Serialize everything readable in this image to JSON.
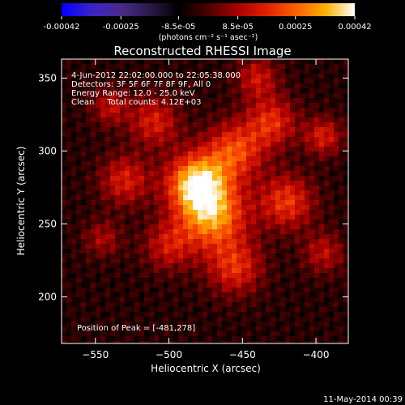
{
  "chart_data": {
    "type": "heatmap",
    "title": "Reconstructed RHESSI Image",
    "xlabel": "Heliocentric X (arcsec)",
    "ylabel": "Heliocentric Y (arcsec)",
    "xlim": [
      -573,
      -378
    ],
    "ylim": [
      168,
      363
    ],
    "x_ticks": [
      -550,
      -500,
      -450,
      -400
    ],
    "y_ticks": [
      200,
      250,
      300,
      350
    ],
    "colorbar": {
      "range": [
        -0.00042,
        0.00042
      ],
      "tick_values": [
        -0.00042,
        -0.00025,
        -8.5e-05,
        8.5e-05,
        0.00025,
        0.00042
      ],
      "tick_labels": [
        "-0.00042",
        "-0.00025",
        "-8.5e-05",
        "8.5e-05",
        "0.00025",
        "0.00042"
      ],
      "unit_label": "(photons cm⁻² s⁻¹ asec⁻²)",
      "colormap": [
        "#0000ff",
        "#3a22c8",
        "#4a2a8c",
        "#2a1a4a",
        "#000000",
        "#4a0000",
        "#a80000",
        "#e02000",
        "#ff6000",
        "#ffb000",
        "#ffffff"
      ]
    },
    "peak": {
      "x": -481,
      "y": 278,
      "value": 0.00042
    },
    "info": {
      "time_range": "4-Jun-2012 22:02:00.000 to 22:05:38.000",
      "detectors": "Detectors: 3F 5F 6F 7F 8F 9F, All 0",
      "energy": "Energy Range: 12.0 - 25.0 keV",
      "clean": "Clean     Total counts: 4.12E+03",
      "peak_text": "Position of Peak = [-481,278]"
    },
    "sources": [
      {
        "x": -481,
        "y": 278,
        "sigma": 14,
        "amplitude": 1.0
      },
      {
        "x": -470,
        "y": 255,
        "sigma": 16,
        "amplitude": 0.8
      },
      {
        "x": -455,
        "y": 300,
        "sigma": 14,
        "amplitude": 0.6
      },
      {
        "x": -430,
        "y": 320,
        "sigma": 12,
        "amplitude": 0.5
      },
      {
        "x": -420,
        "y": 265,
        "sigma": 13,
        "amplitude": 0.55
      },
      {
        "x": -510,
        "y": 320,
        "sigma": 12,
        "amplitude": 0.45
      },
      {
        "x": -530,
        "y": 280,
        "sigma": 12,
        "amplitude": 0.45
      },
      {
        "x": -455,
        "y": 220,
        "sigma": 13,
        "amplitude": 0.5
      },
      {
        "x": -500,
        "y": 235,
        "sigma": 12,
        "amplitude": 0.4
      },
      {
        "x": -395,
        "y": 310,
        "sigma": 9,
        "amplitude": 0.45
      },
      {
        "x": -395,
        "y": 230,
        "sigma": 10,
        "amplitude": 0.35
      },
      {
        "x": -440,
        "y": 350,
        "sigma": 10,
        "amplitude": 0.4
      },
      {
        "x": -540,
        "y": 330,
        "sigma": 9,
        "amplitude": 0.35
      },
      {
        "x": -545,
        "y": 240,
        "sigma": 9,
        "amplitude": 0.3
      }
    ],
    "grid": false
  },
  "footer": {
    "timestamp": "11-May-2014 00:39"
  }
}
